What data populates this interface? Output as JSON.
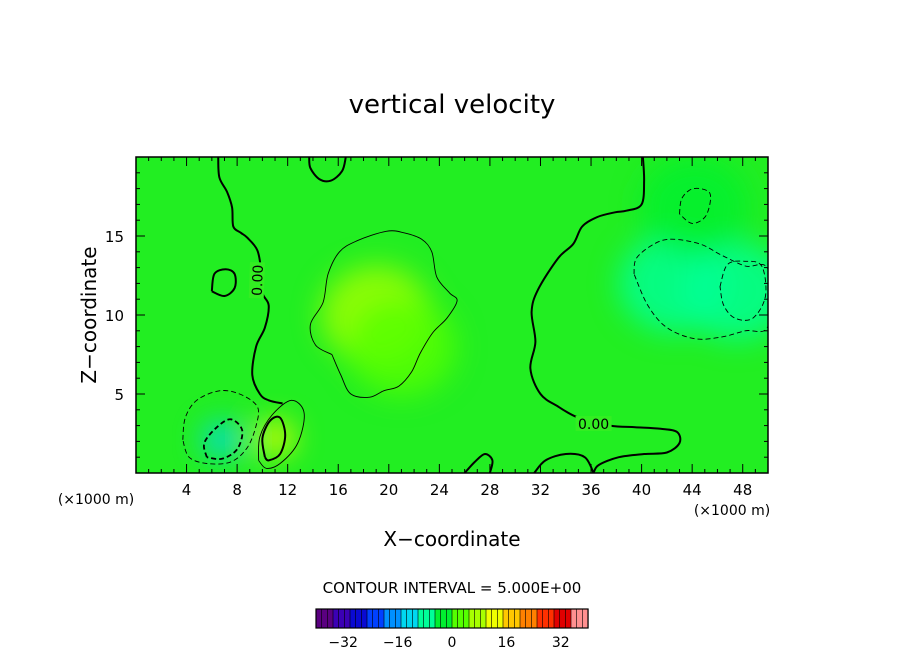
{
  "chart_data": {
    "type": "contour",
    "title": "vertical velocity",
    "xlabel": "X−coordinate",
    "ylabel": "Z−coordinate",
    "x_unit_label": "(×1000 m)",
    "y_unit_label": "(×1000 m)",
    "xlim": [
      0,
      50
    ],
    "ylim": [
      0,
      20
    ],
    "x_ticks": [
      4,
      8,
      12,
      16,
      20,
      24,
      28,
      32,
      36,
      40,
      44,
      48
    ],
    "y_ticks": [
      5,
      10,
      15
    ],
    "contour_interval_text": "CONTOUR INTERVAL = 5.000E+00",
    "contour_interval": 5,
    "contour_labels": [
      {
        "text": "0.00",
        "x": 9.6,
        "y": 12.2,
        "rotation_deg": -88
      },
      {
        "text": "0.00",
        "x": 36.2,
        "y": 3.1,
        "rotation_deg": 0
      }
    ],
    "zero_contours": [
      [
        [
          6.5,
          20
        ],
        [
          6.6,
          18.7
        ],
        [
          7.2,
          17.8
        ],
        [
          7.6,
          16.8
        ],
        [
          7.7,
          15.6
        ],
        [
          8.3,
          15.2
        ],
        [
          8.8,
          14.9
        ],
        [
          9.6,
          14.1
        ],
        [
          9.9,
          12.8
        ],
        [
          10.0,
          11.4
        ],
        [
          10.5,
          10.6
        ],
        [
          10.2,
          9.2
        ],
        [
          9.5,
          8.0
        ],
        [
          9.2,
          6.2
        ],
        [
          9.8,
          5.0
        ],
        [
          10.5,
          4.6
        ],
        [
          11.6,
          4.4
        ]
      ],
      [
        [
          13.7,
          20
        ],
        [
          13.8,
          19.3
        ],
        [
          14.5,
          18.6
        ],
        [
          15.4,
          18.5
        ],
        [
          16.3,
          19.1
        ],
        [
          16.6,
          20
        ]
      ],
      [
        [
          40.1,
          20
        ],
        [
          40.2,
          18.5
        ],
        [
          40.0,
          17.0
        ],
        [
          38.8,
          16.6
        ],
        [
          37.9,
          16.5
        ],
        [
          36.5,
          16.2
        ],
        [
          35.3,
          15.6
        ],
        [
          34.6,
          14.5
        ],
        [
          33.4,
          13.6
        ],
        [
          31.8,
          11.6
        ],
        [
          31.3,
          10.2
        ],
        [
          31.6,
          8.3
        ],
        [
          31.2,
          6.6
        ],
        [
          32.0,
          5.0
        ],
        [
          33.4,
          4.2
        ],
        [
          35.0,
          3.5
        ],
        [
          37.5,
          3.0
        ],
        [
          39.5,
          2.9
        ],
        [
          41.5,
          2.8
        ],
        [
          42.8,
          2.6
        ],
        [
          43.0,
          1.9
        ],
        [
          42.0,
          1.3
        ],
        [
          40.2,
          1.2
        ],
        [
          38.2,
          1.0
        ],
        [
          36.6,
          0.5
        ],
        [
          36.2,
          0
        ]
      ],
      [
        [
          26.0,
          0
        ],
        [
          26.8,
          0.7
        ],
        [
          27.6,
          1.2
        ],
        [
          28.2,
          0.8
        ],
        [
          28.0,
          0
        ]
      ],
      [
        [
          31.5,
          0
        ],
        [
          32.4,
          0.8
        ],
        [
          34.0,
          1.2
        ],
        [
          35.5,
          1.0
        ],
        [
          36.2,
          0
        ]
      ],
      [
        [
          6.0,
          11.5
        ],
        [
          6.2,
          12.6
        ],
        [
          7.1,
          12.9
        ],
        [
          7.8,
          12.6
        ],
        [
          7.8,
          11.7
        ],
        [
          7.0,
          11.2
        ],
        [
          6.0,
          11.5
        ]
      ],
      [
        [
          10.2,
          1.0
        ],
        [
          10.0,
          2.2
        ],
        [
          10.6,
          3.3
        ],
        [
          11.4,
          3.5
        ],
        [
          11.8,
          2.4
        ],
        [
          11.4,
          1.2
        ],
        [
          10.5,
          0.8
        ],
        [
          10.2,
          1.0
        ]
      ]
    ],
    "positive_contours": [
      [
        [
          15.5,
          7.5
        ],
        [
          14.2,
          8.1
        ],
        [
          13.8,
          9.4
        ],
        [
          14.8,
          10.8
        ],
        [
          15.2,
          12.6
        ],
        [
          16.1,
          14.0
        ],
        [
          17.5,
          14.7
        ],
        [
          19.8,
          15.3
        ],
        [
          21.2,
          15.2
        ],
        [
          22.6,
          14.8
        ],
        [
          23.4,
          14.0
        ],
        [
          23.8,
          12.4
        ],
        [
          24.8,
          11.4
        ],
        [
          25.4,
          10.9
        ],
        [
          24.6,
          9.8
        ],
        [
          23.5,
          8.9
        ],
        [
          22.5,
          7.6
        ],
        [
          21.8,
          6.4
        ],
        [
          20.8,
          5.5
        ],
        [
          19.6,
          5.2
        ],
        [
          18.5,
          4.8
        ],
        [
          17.0,
          5.0
        ],
        [
          16.2,
          6.2
        ],
        [
          15.5,
          7.5
        ]
      ],
      [
        [
          9.7,
          0.8
        ],
        [
          9.8,
          2.3
        ],
        [
          10.8,
          3.7
        ],
        [
          12.3,
          4.6
        ],
        [
          13.3,
          3.8
        ],
        [
          12.8,
          1.9
        ],
        [
          11.4,
          0.6
        ],
        [
          10.3,
          0.3
        ],
        [
          9.7,
          0.8
        ]
      ]
    ],
    "negative_contours": [
      [
        [
          3.7,
          2.1
        ],
        [
          3.9,
          3.5
        ],
        [
          4.8,
          4.6
        ],
        [
          6.6,
          5.2
        ],
        [
          8.2,
          5.0
        ],
        [
          9.6,
          4.2
        ],
        [
          9.5,
          3.0
        ],
        [
          8.8,
          1.6
        ],
        [
          7.5,
          0.7
        ],
        [
          5.6,
          0.6
        ],
        [
          4.2,
          1.0
        ],
        [
          3.7,
          2.1
        ]
      ],
      [
        [
          5.6,
          1.0
        ],
        [
          5.4,
          1.9
        ],
        [
          6.4,
          2.9
        ],
        [
          7.5,
          3.4
        ],
        [
          8.4,
          2.7
        ],
        [
          8.0,
          1.5
        ],
        [
          6.8,
          0.9
        ],
        [
          5.6,
          1.0
        ]
      ],
      [
        [
          39.4,
          12.6
        ],
        [
          39.6,
          13.6
        ],
        [
          41.0,
          14.5
        ],
        [
          42.4,
          14.8
        ],
        [
          44.6,
          14.5
        ],
        [
          46.3,
          13.8
        ],
        [
          48.2,
          13.1
        ],
        [
          50.0,
          12.9
        ],
        [
          50.0,
          9.3
        ],
        [
          48.2,
          9.0
        ],
        [
          46.3,
          8.6
        ],
        [
          44.2,
          8.5
        ],
        [
          42.0,
          9.2
        ],
        [
          40.5,
          10.6
        ],
        [
          39.4,
          12.6
        ]
      ],
      [
        [
          43.0,
          16.4
        ],
        [
          43.2,
          17.4
        ],
        [
          44.1,
          18.0
        ],
        [
          45.4,
          17.7
        ],
        [
          45.1,
          16.3
        ],
        [
          44.0,
          15.8
        ],
        [
          43.0,
          16.4
        ]
      ],
      [
        [
          46.2,
          11.8
        ],
        [
          46.8,
          13.2
        ],
        [
          48.2,
          13.4
        ],
        [
          49.5,
          13.1
        ],
        [
          49.8,
          11.2
        ],
        [
          48.8,
          9.8
        ],
        [
          47.4,
          9.8
        ],
        [
          46.5,
          10.6
        ],
        [
          46.2,
          11.8
        ]
      ]
    ],
    "field_highlights": [
      {
        "x": 19,
        "y": 10,
        "value": 6
      },
      {
        "x": 21,
        "y": 8,
        "value": 4
      },
      {
        "x": 11,
        "y": 2.2,
        "value": 14
      },
      {
        "x": 6.8,
        "y": 2.1,
        "value": -12
      },
      {
        "x": 42.5,
        "y": 12,
        "value": -8
      },
      {
        "x": 47.5,
        "y": 11.5,
        "value": -6
      },
      {
        "x": 44.2,
        "y": 16.9,
        "value": -4
      }
    ],
    "colorbar": {
      "ticks": [
        -32,
        -16,
        0,
        16,
        32
      ],
      "vmin": -40,
      "vmax": 40,
      "colors": [
        "#5a0080",
        "#3b00b5",
        "#0a0ad2",
        "#0040ff",
        "#0090ff",
        "#00d8f0",
        "#00ff99",
        "#00f030",
        "#55ff00",
        "#a8ff00",
        "#f0ff00",
        "#ffc800",
        "#ff8000",
        "#ff3000",
        "#e00000",
        "#ff9090"
      ]
    }
  }
}
